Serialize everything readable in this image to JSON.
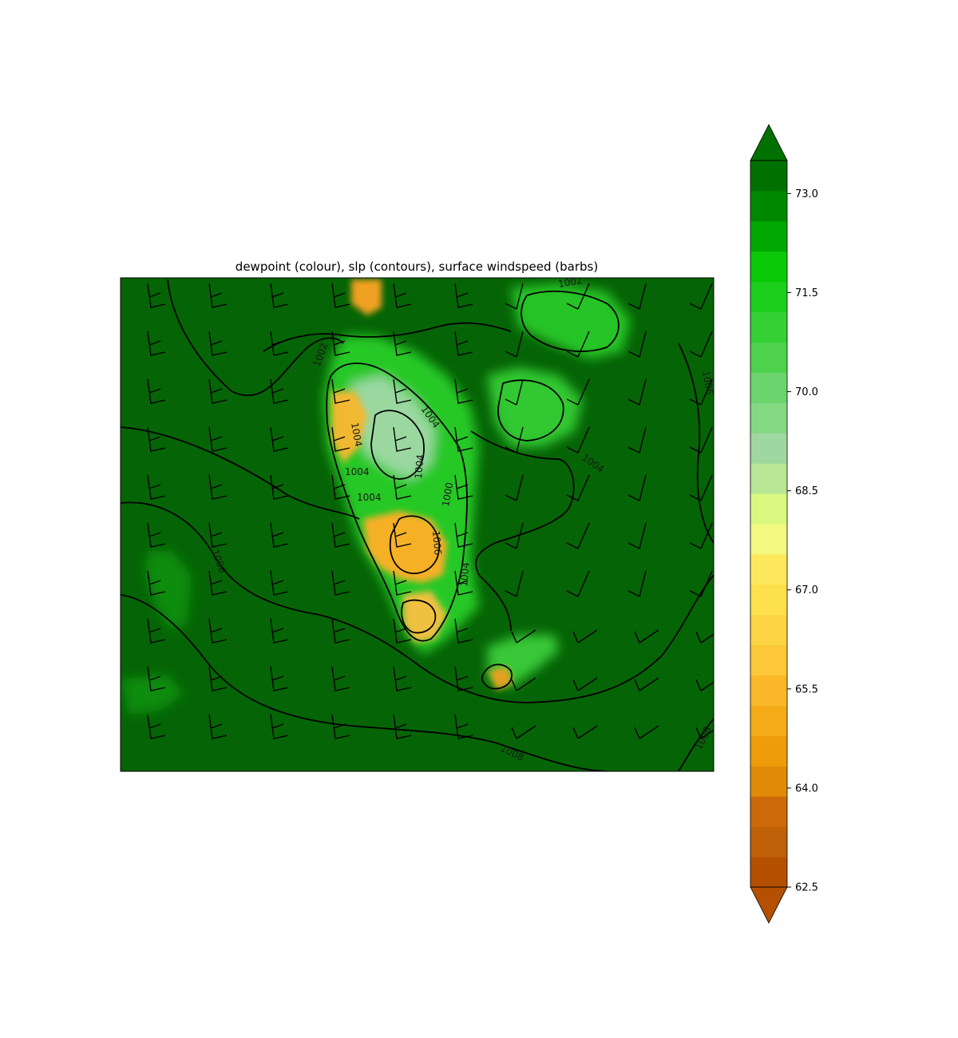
{
  "title": "dewpoint (colour), slp (contours), surface windspeed (barbs)",
  "colorbar": {
    "min": 62.5,
    "max": 73.5,
    "step": 0.5,
    "extend": "both",
    "tick_labels": [
      "62.5",
      "64.0",
      "65.5",
      "67.0",
      "68.5",
      "70.0",
      "71.5",
      "73.0"
    ],
    "tick_values": [
      62.5,
      64.0,
      65.5,
      67.0,
      68.5,
      70.0,
      71.5,
      73.0
    ],
    "colors": [
      "#b45000",
      "#c06008",
      "#cc6a0a",
      "#e08a08",
      "#ee9c0a",
      "#f5aa18",
      "#fab828",
      "#fcc838",
      "#fcd444",
      "#fde04c",
      "#fde85c",
      "#f2f880",
      "#d8f880",
      "#b8e694",
      "#9ed8a0",
      "#84d884",
      "#6cd46c",
      "#4ed24e",
      "#34d034",
      "#1ccf1c",
      "#08c808",
      "#02a802",
      "#008800",
      "#007000"
    ],
    "under_color": "#b45000",
    "over_color": "#007000"
  },
  "contour_labels": [
    "1002",
    "1004",
    "1004",
    "1004",
    "1004",
    "1004",
    "1004",
    "1004",
    "1006",
    "1006",
    "1006",
    "1008",
    "1008",
    "1002",
    "1000"
  ],
  "map": {
    "background_color": "#056405"
  }
}
